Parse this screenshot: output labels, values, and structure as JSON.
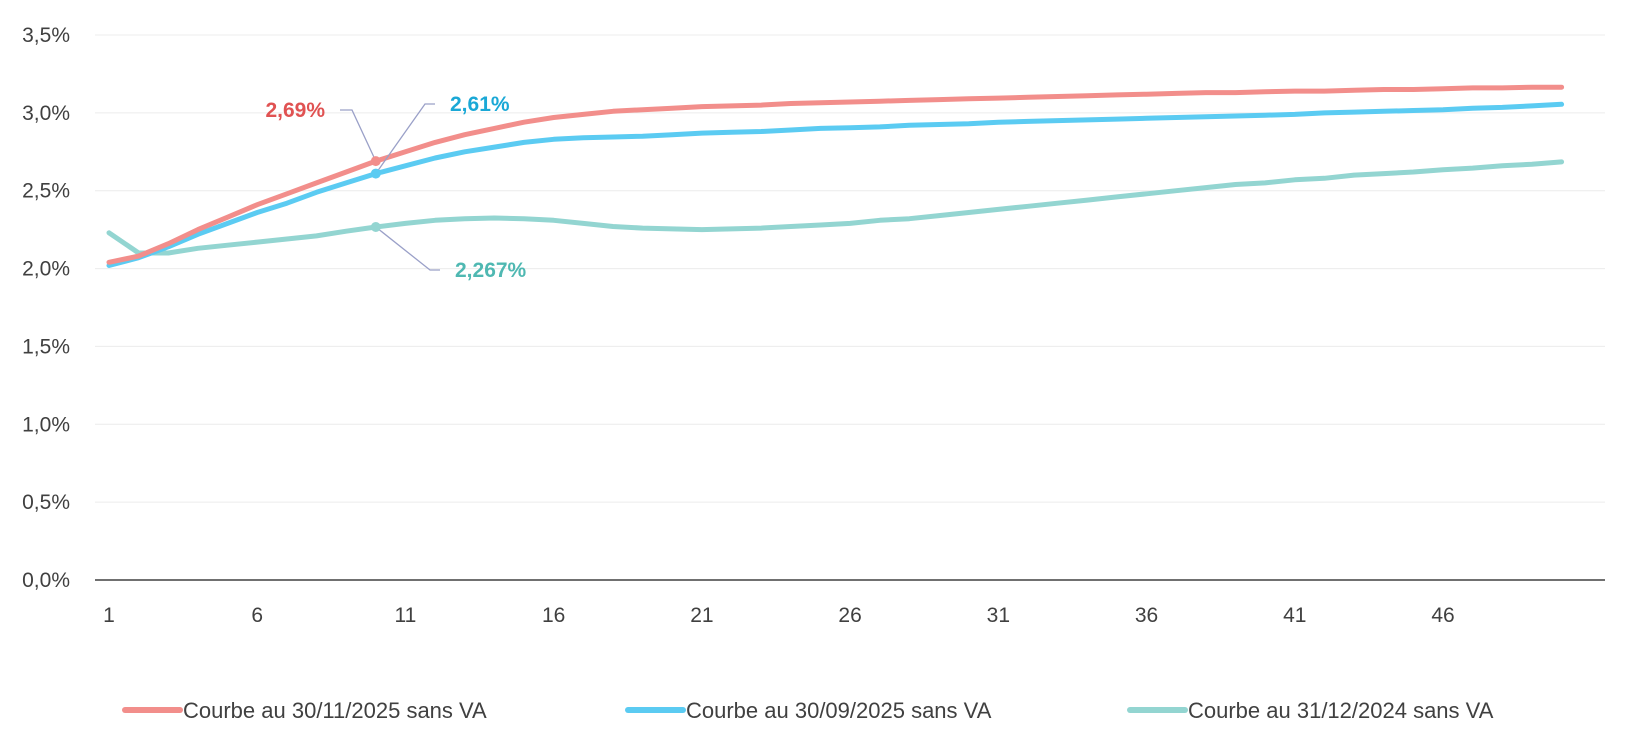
{
  "chart_data": {
    "type": "line",
    "title": "",
    "xlabel": "",
    "ylabel": "",
    "xlim": [
      1,
      50
    ],
    "ylim": [
      0,
      3.5
    ],
    "x": [
      1,
      2,
      3,
      4,
      5,
      6,
      7,
      8,
      9,
      10,
      11,
      12,
      13,
      14,
      15,
      16,
      17,
      18,
      19,
      20,
      21,
      22,
      23,
      24,
      25,
      26,
      27,
      28,
      29,
      30,
      31,
      32,
      33,
      34,
      35,
      36,
      37,
      38,
      39,
      40,
      41,
      42,
      43,
      44,
      45,
      46,
      47,
      48,
      49,
      50
    ],
    "x_ticks": [
      {
        "value": 1,
        "label": "1"
      },
      {
        "value": 6,
        "label": "6"
      },
      {
        "value": 11,
        "label": "11"
      },
      {
        "value": 16,
        "label": "16"
      },
      {
        "value": 21,
        "label": "21"
      },
      {
        "value": 26,
        "label": "26"
      },
      {
        "value": 31,
        "label": "31"
      },
      {
        "value": 36,
        "label": "36"
      },
      {
        "value": 41,
        "label": "41"
      },
      {
        "value": 46,
        "label": "46"
      }
    ],
    "y_ticks": [
      {
        "value": 0.0,
        "label": "0,0%"
      },
      {
        "value": 0.5,
        "label": "0,5%"
      },
      {
        "value": 1.0,
        "label": "1,0%"
      },
      {
        "value": 1.5,
        "label": "1,5%"
      },
      {
        "value": 2.0,
        "label": "2,0%"
      },
      {
        "value": 2.5,
        "label": "2,5%"
      },
      {
        "value": 3.0,
        "label": "3,0%"
      },
      {
        "value": 3.5,
        "label": "3,5%"
      }
    ],
    "grid": true,
    "legend_position": "bottom",
    "series": [
      {
        "name": "Courbe au 30/11/2025 sans VA",
        "color": "#f28e8b",
        "values": [
          2.04,
          2.08,
          2.16,
          2.25,
          2.33,
          2.41,
          2.48,
          2.55,
          2.62,
          2.69,
          2.75,
          2.81,
          2.86,
          2.9,
          2.94,
          2.97,
          2.99,
          3.01,
          3.02,
          3.03,
          3.04,
          3.045,
          3.05,
          3.06,
          3.065,
          3.07,
          3.075,
          3.08,
          3.085,
          3.09,
          3.095,
          3.1,
          3.105,
          3.11,
          3.115,
          3.12,
          3.125,
          3.13,
          3.13,
          3.135,
          3.14,
          3.14,
          3.145,
          3.15,
          3.15,
          3.155,
          3.16,
          3.16,
          3.165,
          3.165
        ]
      },
      {
        "name": "Courbe au 30/09/2025 sans VA",
        "color": "#5bcbf2",
        "values": [
          2.02,
          2.07,
          2.14,
          2.22,
          2.29,
          2.36,
          2.42,
          2.49,
          2.55,
          2.61,
          2.66,
          2.71,
          2.75,
          2.78,
          2.81,
          2.83,
          2.84,
          2.845,
          2.85,
          2.86,
          2.87,
          2.875,
          2.88,
          2.89,
          2.9,
          2.905,
          2.91,
          2.92,
          2.925,
          2.93,
          2.94,
          2.945,
          2.95,
          2.955,
          2.96,
          2.965,
          2.97,
          2.975,
          2.98,
          2.985,
          2.99,
          3.0,
          3.005,
          3.01,
          3.015,
          3.02,
          3.03,
          3.035,
          3.045,
          3.055
        ]
      },
      {
        "name": "Courbe au 31/12/2024 sans VA",
        "color": "#93d5d1",
        "values": [
          2.23,
          2.1,
          2.1,
          2.13,
          2.15,
          2.17,
          2.19,
          2.21,
          2.24,
          2.267,
          2.29,
          2.31,
          2.32,
          2.325,
          2.32,
          2.31,
          2.29,
          2.27,
          2.26,
          2.255,
          2.25,
          2.255,
          2.26,
          2.27,
          2.28,
          2.29,
          2.31,
          2.32,
          2.34,
          2.36,
          2.38,
          2.4,
          2.42,
          2.44,
          2.46,
          2.48,
          2.5,
          2.52,
          2.54,
          2.55,
          2.57,
          2.58,
          2.6,
          2.61,
          2.62,
          2.635,
          2.645,
          2.66,
          2.67,
          2.685
        ]
      }
    ],
    "annotations": [
      {
        "text": "2,69%",
        "x": 10,
        "y": 2.69,
        "color": "#e05252",
        "series": 0
      },
      {
        "text": "2,61%",
        "x": 10,
        "y": 2.61,
        "color": "#1aa8d6",
        "series": 1
      },
      {
        "text": "2,267%",
        "x": 10,
        "y": 2.267,
        "color": "#4fb8b2",
        "series": 2
      }
    ]
  }
}
